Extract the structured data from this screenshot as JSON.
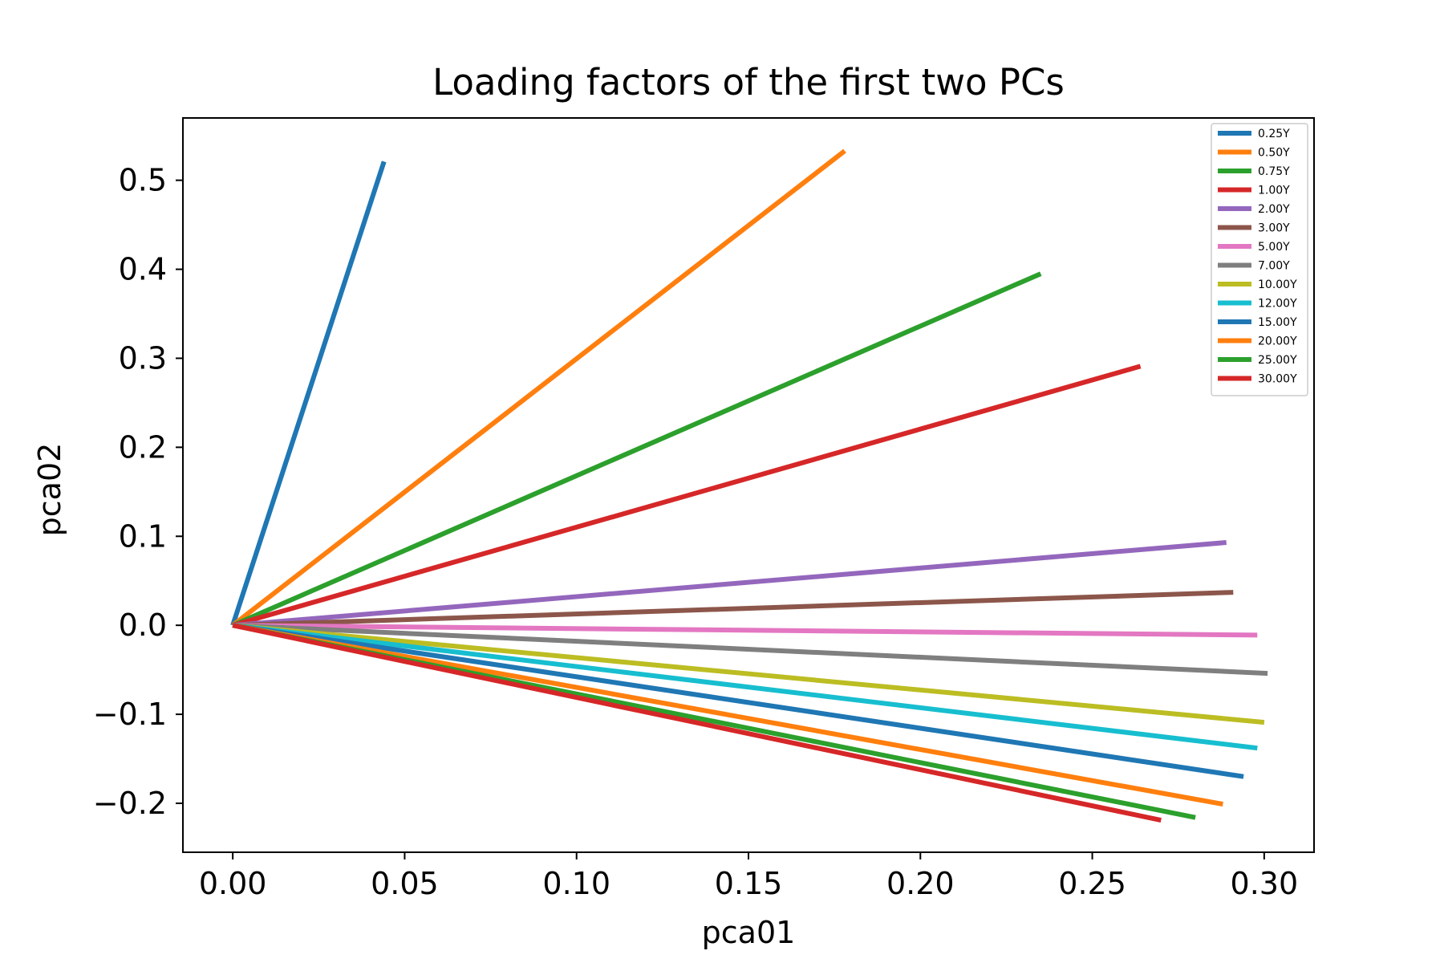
{
  "chart_data": {
    "type": "line",
    "title": "Loading factors of the first two PCs",
    "xlabel": "pca01",
    "ylabel": "pca02",
    "xlim": [
      -0.0145,
      0.3145
    ],
    "ylim": [
      -0.255,
      0.57
    ],
    "xticks": [
      0.0,
      0.05,
      0.1,
      0.15,
      0.2,
      0.25,
      0.3
    ],
    "xtick_labels": [
      "0.00",
      "0.05",
      "0.10",
      "0.15",
      "0.20",
      "0.25",
      "0.30"
    ],
    "yticks": [
      -0.2,
      -0.1,
      0.0,
      0.1,
      0.2,
      0.3,
      0.4,
      0.5
    ],
    "ytick_labels": [
      "−0.2",
      "−0.1",
      "0.0",
      "0.1",
      "0.2",
      "0.3",
      "0.4",
      "0.5"
    ],
    "grid": false,
    "legend_position": "top-right",
    "series": [
      {
        "name": "0.25Y",
        "color": "#1f77b4",
        "x": [
          0,
          0.044
        ],
        "y": [
          0,
          0.521
        ]
      },
      {
        "name": "0.50Y",
        "color": "#ff7f0e",
        "x": [
          0,
          0.178
        ],
        "y": [
          0,
          0.533
        ]
      },
      {
        "name": "0.75Y",
        "color": "#2ca02c",
        "x": [
          0,
          0.235
        ],
        "y": [
          0,
          0.395
        ]
      },
      {
        "name": "1.00Y",
        "color": "#d62728",
        "x": [
          0,
          0.264
        ],
        "y": [
          0,
          0.291
        ]
      },
      {
        "name": "2.00Y",
        "color": "#9467bd",
        "x": [
          0,
          0.289
        ],
        "y": [
          0,
          0.093
        ]
      },
      {
        "name": "3.00Y",
        "color": "#8c564b",
        "x": [
          0,
          0.291
        ],
        "y": [
          0,
          0.037
        ]
      },
      {
        "name": "5.00Y",
        "color": "#e377c2",
        "x": [
          0,
          0.298
        ],
        "y": [
          0,
          -0.011
        ]
      },
      {
        "name": "7.00Y",
        "color": "#7f7f7f",
        "x": [
          0,
          0.301
        ],
        "y": [
          0,
          -0.054
        ]
      },
      {
        "name": "10.00Y",
        "color": "#bcbd22",
        "x": [
          0,
          0.3
        ],
        "y": [
          0,
          -0.109
        ]
      },
      {
        "name": "12.00Y",
        "color": "#17becf",
        "x": [
          0,
          0.298
        ],
        "y": [
          0,
          -0.138
        ]
      },
      {
        "name": "15.00Y",
        "color": "#1f77b4",
        "x": [
          0,
          0.294
        ],
        "y": [
          0,
          -0.17
        ]
      },
      {
        "name": "20.00Y",
        "color": "#ff7f0e",
        "x": [
          0,
          0.288
        ],
        "y": [
          0,
          -0.201
        ]
      },
      {
        "name": "25.00Y",
        "color": "#2ca02c",
        "x": [
          0,
          0.28
        ],
        "y": [
          0,
          -0.216
        ]
      },
      {
        "name": "30.00Y",
        "color": "#d62728",
        "x": [
          0,
          0.27
        ],
        "y": [
          0,
          -0.219
        ]
      }
    ]
  }
}
